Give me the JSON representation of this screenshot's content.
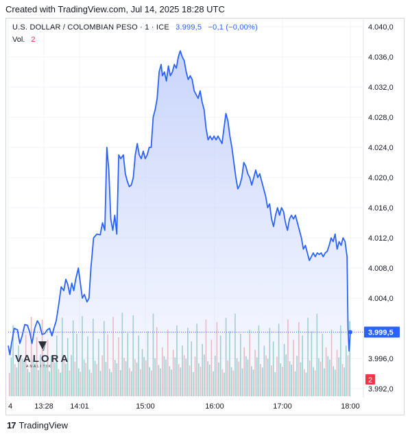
{
  "header": {
    "title": "Created with TradingView.com, Jul 14, 2025 18:28 UTC"
  },
  "legend": {
    "symbol": "U.S. DOLLAR / COLOMBIAN PESO · 1 · ICE",
    "last": "3.999,5",
    "change": "−0,1 (−0,00%)",
    "vol_label": "Vol.",
    "vol_value": "2"
  },
  "watermark": {
    "name": "VALORA",
    "sub": "ANALITIK"
  },
  "footer": {
    "brand": "TradingView"
  },
  "colors": {
    "line": "#2962ff",
    "area_top": "#c7d3fb",
    "vol_up": "#7fc4bd",
    "vol_down": "#f6a3a6",
    "price_tag": "#2962ff",
    "vol_tag": "#f23645"
  },
  "chart_data": {
    "type": "area",
    "y_ticks": [
      "4.040,0",
      "4.036,0",
      "4.032,0",
      "4.028,0",
      "4.024,0",
      "4.020,0",
      "4.016,0",
      "4.012,0",
      "4.008,0",
      "4.004,0",
      "3.996,0",
      "3.992,0"
    ],
    "y_tick_values": [
      4040,
      4036,
      4032,
      4028,
      4024,
      4020,
      4016,
      4012,
      4008,
      4004,
      3996,
      3992
    ],
    "ylim": [
      3991.0,
      4041.0
    ],
    "x_ticks": [
      "4",
      "13:28",
      "14:01",
      "15:00",
      "16:00",
      "17:00",
      "18:00"
    ],
    "x_tick_values": [
      0,
      12.72,
      12.985,
      14.0,
      15.0,
      16.0,
      17.0
    ],
    "xlim": [
      0,
      17.15
    ],
    "last_price_label": "3.999,5",
    "last_price": 3999.5,
    "vol_tag": "2",
    "series": [
      {
        "values": [
          [
            0.0,
            3997.7
          ],
          [
            0.05,
            3996.5
          ],
          [
            0.1,
            3998.0
          ],
          [
            0.18,
            4000.0
          ],
          [
            0.28,
            3999.8
          ],
          [
            0.35,
            3998.0
          ],
          [
            0.42,
            3999.0
          ],
          [
            0.5,
            4000.5
          ],
          [
            0.58,
            4000.4
          ],
          [
            0.65,
            3999.5
          ],
          [
            0.72,
            3998.0
          ],
          [
            0.8,
            4000.0
          ],
          [
            0.88,
            4001.0
          ],
          [
            0.95,
            4000.5
          ],
          [
            1.02,
            3999.2
          ],
          [
            1.1,
            3999.3
          ],
          [
            1.18,
            3999.8
          ],
          [
            1.25,
            4000.0
          ],
          [
            1.32,
            3999.0
          ],
          [
            1.38,
            4000.0
          ],
          [
            1.45,
            4001.0
          ],
          [
            1.52,
            4003.0
          ],
          [
            1.6,
            4005.5
          ],
          [
            1.68,
            4005.0
          ],
          [
            1.74,
            4006.5
          ],
          [
            1.8,
            4005.8
          ],
          [
            1.86,
            4004.5
          ],
          [
            1.92,
            4006.0
          ],
          [
            1.98,
            4005.0
          ],
          [
            2.04,
            4006.5
          ],
          [
            2.12,
            4008.0
          ],
          [
            2.18,
            4006.0
          ],
          [
            2.24,
            4004.0
          ],
          [
            2.3,
            4004.5
          ],
          [
            2.38,
            4003.5
          ],
          [
            2.44,
            4004.0
          ],
          [
            2.5,
            4008.0
          ],
          [
            2.58,
            4012.0
          ],
          [
            2.68,
            4012.5
          ],
          [
            2.78,
            4012.4
          ],
          [
            2.85,
            4014.0
          ],
          [
            2.92,
            4013.0
          ],
          [
            2.98,
            4024.0
          ],
          [
            3.04,
            4021.0
          ],
          [
            3.1,
            4014.5
          ],
          [
            3.16,
            4013.0
          ],
          [
            3.22,
            4015.0
          ],
          [
            3.28,
            4012.5
          ],
          [
            3.34,
            4023.0
          ],
          [
            3.4,
            4022.5
          ],
          [
            3.48,
            4023.0
          ],
          [
            3.54,
            4020.5
          ],
          [
            3.6,
            4019.5
          ],
          [
            3.66,
            4018.8
          ],
          [
            3.72,
            4019.0
          ],
          [
            3.78,
            4020.0
          ],
          [
            3.84,
            4023.0
          ],
          [
            3.9,
            4024.5
          ],
          [
            3.96,
            4023.0
          ],
          [
            4.02,
            4022.5
          ],
          [
            4.08,
            4023.5
          ],
          [
            4.14,
            4022.5
          ],
          [
            4.2,
            4023.0
          ],
          [
            4.26,
            4024.0
          ],
          [
            4.32,
            4024.0
          ],
          [
            4.38,
            4028.0
          ],
          [
            4.44,
            4029.0
          ],
          [
            4.5,
            4030.5
          ],
          [
            4.56,
            4034.0
          ],
          [
            4.62,
            4035.0
          ],
          [
            4.66,
            4033.5
          ],
          [
            4.72,
            4034.0
          ],
          [
            4.78,
            4032.8
          ],
          [
            4.84,
            4034.8
          ],
          [
            4.9,
            4033.5
          ],
          [
            4.96,
            4034.0
          ],
          [
            5.02,
            4035.0
          ],
          [
            5.08,
            4034.5
          ],
          [
            5.14,
            4036.0
          ],
          [
            5.2,
            4036.8
          ],
          [
            5.26,
            4036.0
          ],
          [
            5.32,
            4035.5
          ],
          [
            5.38,
            4034.0
          ],
          [
            5.44,
            4033.0
          ],
          [
            5.5,
            4033.5
          ],
          [
            5.56,
            4033.0
          ],
          [
            5.62,
            4031.5
          ],
          [
            5.68,
            4031.0
          ],
          [
            5.74,
            4030.5
          ],
          [
            5.8,
            4031.5
          ],
          [
            5.86,
            4030.0
          ],
          [
            5.92,
            4029.0
          ],
          [
            5.98,
            4026.5
          ],
          [
            6.04,
            4025.0
          ],
          [
            6.1,
            4025.5
          ],
          [
            6.16,
            4025.0
          ],
          [
            6.22,
            4025.5
          ],
          [
            6.28,
            4025.0
          ],
          [
            6.34,
            4025.5
          ],
          [
            6.4,
            4025.0
          ],
          [
            6.46,
            4024.5
          ],
          [
            6.52,
            4026.5
          ],
          [
            6.58,
            4028.5
          ],
          [
            6.64,
            4027.5
          ],
          [
            6.7,
            4025.5
          ],
          [
            6.76,
            4024.0
          ],
          [
            6.82,
            4022.0
          ],
          [
            6.88,
            4020.0
          ],
          [
            6.94,
            4018.5
          ],
          [
            7.0,
            4019.0
          ],
          [
            7.06,
            4020.0
          ],
          [
            7.12,
            4022.0
          ],
          [
            7.18,
            4021.5
          ],
          [
            7.24,
            4020.5
          ],
          [
            7.3,
            4020.0
          ],
          [
            7.36,
            4019.0
          ],
          [
            7.42,
            4020.0
          ],
          [
            7.48,
            4021.0
          ],
          [
            7.54,
            4020.0
          ],
          [
            7.6,
            4020.5
          ],
          [
            7.66,
            4019.5
          ],
          [
            7.72,
            4018.5
          ],
          [
            7.78,
            4017.5
          ],
          [
            7.84,
            4016.0
          ],
          [
            7.9,
            4016.5
          ],
          [
            7.96,
            4014.5
          ],
          [
            8.02,
            4013.5
          ],
          [
            8.08,
            4015.0
          ],
          [
            8.14,
            4016.0
          ],
          [
            8.2,
            4015.0
          ],
          [
            8.26,
            4016.0
          ],
          [
            8.32,
            4015.5
          ],
          [
            8.38,
            4014.0
          ],
          [
            8.44,
            4013.0
          ],
          [
            8.5,
            4014.5
          ],
          [
            8.56,
            4015.0
          ],
          [
            8.62,
            4014.5
          ],
          [
            8.68,
            4015.0
          ],
          [
            8.74,
            4014.0
          ],
          [
            8.8,
            4013.0
          ],
          [
            8.86,
            4012.0
          ],
          [
            8.92,
            4010.5
          ],
          [
            8.98,
            4011.0
          ],
          [
            9.04,
            4010.0
          ],
          [
            9.1,
            4009.0
          ],
          [
            9.16,
            4009.5
          ],
          [
            9.22,
            4010.0
          ],
          [
            9.28,
            4009.5
          ],
          [
            9.34,
            4010.0
          ],
          [
            9.4,
            4009.8
          ],
          [
            9.46,
            4010.0
          ],
          [
            9.52,
            4009.5
          ],
          [
            9.58,
            4010.0
          ],
          [
            9.64,
            4010.2
          ],
          [
            9.7,
            4011.0
          ],
          [
            9.76,
            4012.0
          ],
          [
            9.82,
            4011.5
          ],
          [
            9.88,
            4012.5
          ],
          [
            9.94,
            4010.5
          ],
          [
            10.0,
            4011.5
          ],
          [
            10.06,
            4011.0
          ],
          [
            10.12,
            4012.0
          ],
          [
            10.18,
            4011.5
          ],
          [
            10.24,
            4009.5
          ],
          [
            10.27,
            4000.0
          ],
          [
            10.3,
            3997.0
          ],
          [
            10.34,
            3999.5
          ]
        ]
      }
    ],
    "volume": [
      1,
      1,
      2,
      1,
      1,
      2,
      1,
      1,
      1,
      2,
      1,
      1,
      2,
      1,
      1,
      2,
      1,
      1,
      2,
      1,
      1,
      2,
      1,
      1,
      1,
      1,
      2,
      1,
      1,
      2,
      1,
      1,
      2,
      1,
      1,
      2,
      1,
      2,
      1,
      1,
      2,
      1,
      1,
      2,
      1,
      1,
      2,
      1,
      1,
      2,
      1,
      1,
      2,
      1,
      2,
      1,
      1,
      2,
      1,
      1,
      2,
      1,
      2,
      1,
      1,
      2,
      1,
      1,
      2,
      1,
      1,
      2,
      1,
      2,
      1,
      1,
      2,
      1,
      1,
      2,
      1,
      2,
      1,
      1,
      2,
      1,
      1,
      2,
      1,
      1,
      2,
      1,
      2,
      1,
      1,
      2,
      1,
      1,
      2,
      1,
      2,
      1,
      1,
      2,
      1,
      1,
      2,
      1,
      2,
      1,
      1,
      2,
      1,
      1,
      2,
      1,
      2,
      1,
      1,
      2,
      1,
      2,
      1,
      1,
      2,
      1,
      1,
      2,
      1,
      2,
      1,
      1,
      2,
      1,
      1,
      2,
      1,
      2,
      1,
      1,
      2,
      1,
      1,
      2,
      1,
      2,
      1,
      1,
      2,
      1,
      1,
      2,
      1,
      2,
      1,
      1,
      2,
      1,
      1,
      2,
      1,
      2,
      1,
      1,
      2,
      1,
      2,
      1,
      1,
      2,
      1,
      1,
      2,
      1,
      2,
      1,
      1,
      2,
      1,
      1,
      2,
      1,
      2,
      1,
      1,
      2,
      1,
      2
    ]
  }
}
